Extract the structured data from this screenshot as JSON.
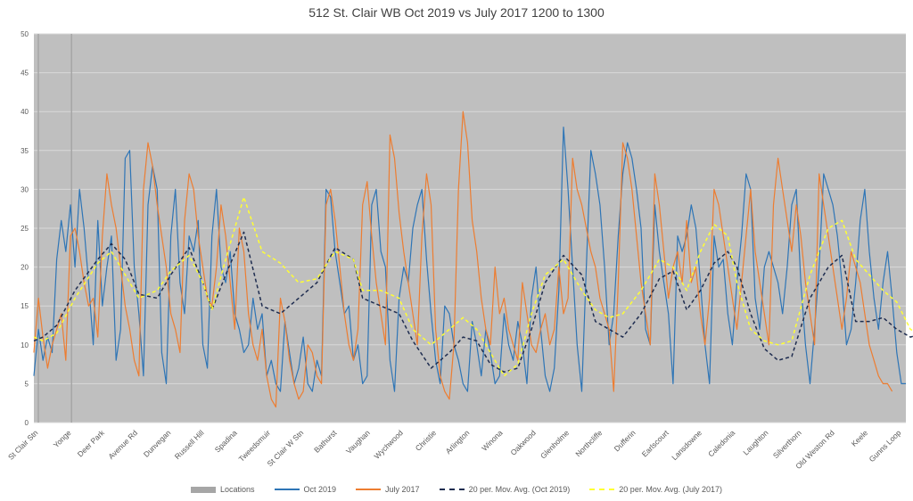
{
  "chart_data": {
    "type": "line",
    "title": "512 St. Clair WB Oct 2019 vs July 2017 1200 to 1300",
    "xlabel": "",
    "ylabel": "",
    "ylim": [
      0,
      50
    ],
    "yticks": [
      0,
      5,
      10,
      15,
      20,
      25,
      30,
      35,
      40,
      45,
      50
    ],
    "grid": true,
    "legend_position": "bottom",
    "locations": [
      "St Clair Stn",
      "Yonge",
      "Deer Park",
      "Avenue Rd",
      "Dunvegan",
      "Russell Hill",
      "Spadina",
      "Tweedsmuir",
      "St Clair W Stn",
      "Bathurst",
      "Vaughan",
      "Wychwood",
      "Christie",
      "Arlington",
      "Winona",
      "Oakwood",
      "Glenholme",
      "Northcliffe",
      "Dufferin",
      "Earlscourt",
      "Lansdowne",
      "Caledonia",
      "Laughton",
      "Silverthorn",
      "Old Weston Rd",
      "Keele",
      "Gunns Loop"
    ],
    "location_markers": [
      "St Clair Stn",
      "Yonge"
    ],
    "series": [
      {
        "name": "Locations",
        "color": "#a6a6a6",
        "style": "bar"
      },
      {
        "name": "Oct 2019",
        "color": "#2e75b6",
        "style": "solid",
        "values": [
          6,
          12,
          8,
          11,
          9,
          21,
          26,
          22,
          28,
          20,
          30,
          25,
          18,
          10,
          26,
          15,
          20,
          24,
          8,
          12,
          34,
          35,
          20,
          14,
          6,
          28,
          33,
          30,
          9,
          5,
          24,
          30,
          18,
          14,
          24,
          22,
          26,
          10,
          7,
          24,
          30,
          20,
          18,
          22,
          14,
          12,
          9,
          10,
          16,
          12,
          14,
          6,
          8,
          5,
          4,
          13,
          9,
          5,
          7,
          11,
          5,
          4,
          8,
          6,
          30,
          29,
          22,
          18,
          14,
          15,
          8,
          10,
          5,
          6,
          28,
          30,
          22,
          20,
          8,
          4,
          16,
          20,
          18,
          25,
          28,
          30,
          21,
          14,
          8,
          5,
          15,
          14,
          10,
          8,
          5,
          4,
          13,
          10,
          6,
          12,
          9,
          5,
          6,
          14,
          10,
          8,
          13,
          10,
          5,
          16,
          20,
          12,
          6,
          4,
          7,
          17,
          38,
          30,
          20,
          10,
          4,
          20,
          35,
          32,
          28,
          20,
          10,
          14,
          24,
          32,
          36,
          34,
          30,
          25,
          12,
          10,
          28,
          22,
          18,
          14,
          5,
          24,
          22,
          24,
          28,
          25,
          18,
          10,
          5,
          24,
          20,
          21,
          14,
          10,
          18,
          24,
          32,
          30,
          16,
          12,
          20,
          22,
          20,
          18,
          14,
          20,
          28,
          30,
          18,
          10,
          5,
          12,
          20,
          32,
          30,
          28,
          24,
          18,
          10,
          12,
          18,
          26,
          30,
          22,
          16,
          12,
          18,
          22,
          16,
          9,
          5,
          5
        ]
      },
      {
        "name": "July 2017",
        "color": "#ed7d31",
        "style": "solid",
        "values": [
          9,
          16,
          11,
          7,
          10,
          12,
          14,
          8,
          24,
          25,
          22,
          18,
          15,
          16,
          11,
          24,
          32,
          28,
          25,
          20,
          15,
          12,
          8,
          6,
          30,
          36,
          33,
          28,
          24,
          20,
          14,
          12,
          9,
          26,
          32,
          30,
          24,
          20,
          16,
          15,
          20,
          28,
          24,
          18,
          12,
          25,
          22,
          14,
          10,
          8,
          12,
          6,
          3,
          2,
          16,
          13,
          8,
          5,
          3,
          4,
          10,
          9,
          6,
          5,
          28,
          30,
          26,
          20,
          14,
          10,
          8,
          12,
          28,
          31,
          24,
          18,
          14,
          10,
          37,
          34,
          27,
          22,
          18,
          14,
          10,
          24,
          32,
          28,
          12,
          6,
          4,
          3,
          10,
          30,
          40,
          36,
          26,
          22,
          16,
          12,
          10,
          20,
          14,
          16,
          12,
          10,
          8,
          18,
          14,
          10,
          9,
          12,
          14,
          10,
          12,
          20,
          14,
          16,
          34,
          30,
          28,
          25,
          22,
          20,
          16,
          14,
          12,
          4,
          18,
          36,
          34,
          30,
          24,
          18,
          14,
          10,
          32,
          28,
          22,
          16,
          20,
          22,
          18,
          26,
          18,
          20,
          14,
          10,
          16,
          30,
          28,
          24,
          20,
          16,
          12,
          18,
          24,
          30,
          22,
          18,
          14,
          10,
          28,
          34,
          30,
          26,
          22,
          28,
          24,
          18,
          14,
          10,
          32,
          28,
          24,
          20,
          16,
          12,
          16,
          22,
          20,
          18,
          14,
          10,
          8,
          6,
          5,
          5,
          4
        ]
      },
      {
        "name": "20 per. Mov. Avg. (Oct 2019)",
        "color": "#1f2d50",
        "style": "dashed",
        "points": [
          [
            0,
            10.5
          ],
          [
            2,
            11
          ],
          [
            5,
            12.5
          ],
          [
            9,
            17
          ],
          [
            14,
            21
          ],
          [
            17,
            23
          ],
          [
            20,
            21
          ],
          [
            23,
            16.5
          ],
          [
            27,
            16
          ],
          [
            30,
            19
          ],
          [
            34,
            22.5
          ],
          [
            37,
            18
          ],
          [
            39,
            14.5
          ],
          [
            42,
            19
          ],
          [
            46,
            24.5
          ],
          [
            50,
            15
          ],
          [
            54,
            14
          ],
          [
            58,
            16
          ],
          [
            62,
            18
          ],
          [
            66,
            22.5
          ],
          [
            70,
            21
          ],
          [
            72,
            16
          ],
          [
            76,
            15
          ],
          [
            80,
            14
          ],
          [
            83,
            10.5
          ],
          [
            87,
            7
          ],
          [
            91,
            9
          ],
          [
            94,
            11
          ],
          [
            97,
            10.5
          ],
          [
            100,
            7.5
          ],
          [
            103,
            6.5
          ],
          [
            106,
            7
          ],
          [
            109,
            12
          ],
          [
            112,
            18
          ],
          [
            116,
            21.5
          ],
          [
            120,
            19
          ],
          [
            123,
            13
          ],
          [
            126,
            12
          ],
          [
            129,
            11
          ],
          [
            133,
            14
          ],
          [
            137,
            18.5
          ],
          [
            140,
            19.5
          ],
          [
            143,
            14.5
          ],
          [
            146,
            17
          ],
          [
            149,
            20.5
          ],
          [
            152,
            22
          ],
          [
            154,
            20
          ],
          [
            157,
            14
          ],
          [
            160,
            9.5
          ],
          [
            163,
            8
          ],
          [
            166,
            8.5
          ],
          [
            170,
            16
          ],
          [
            174,
            20
          ],
          [
            177,
            21.5
          ],
          [
            180,
            13
          ],
          [
            183,
            13
          ],
          [
            186,
            13.5
          ],
          [
            189,
            12
          ],
          [
            192,
            11
          ],
          [
            195,
            11.5
          ],
          [
            199,
            17
          ],
          [
            202,
            20
          ],
          [
            205,
            15
          ],
          [
            208,
            13
          ],
          [
            211,
            17
          ],
          [
            215,
            20
          ],
          [
            219,
            21
          ],
          [
            223,
            11.5
          ],
          [
            227,
            22
          ],
          [
            231,
            28
          ],
          [
            234,
            22
          ],
          [
            237,
            13.5
          ],
          [
            240,
            14
          ],
          [
            243,
            15
          ],
          [
            246,
            15.5
          ],
          [
            249,
            14
          ],
          [
            252,
            13.5
          ],
          [
            255,
            14.5
          ],
          [
            259,
            16
          ],
          [
            263,
            18
          ],
          [
            266,
            17
          ],
          [
            270,
            13.5
          ],
          [
            273,
            13
          ],
          [
            276,
            16
          ],
          [
            279,
            17.5
          ],
          [
            282,
            15
          ],
          [
            285,
            11.5
          ],
          [
            289,
            14
          ],
          [
            293,
            18
          ],
          [
            296,
            20
          ],
          [
            299,
            16
          ],
          [
            302,
            11.5
          ]
        ]
      },
      {
        "name": "20 per. Mov. Avg. (July 2017)",
        "color": "#ffff33",
        "style": "dashed",
        "points": [
          [
            0,
            11
          ],
          [
            2,
            10.5
          ],
          [
            5,
            11.5
          ],
          [
            9,
            16
          ],
          [
            14,
            20.5
          ],
          [
            17,
            22
          ],
          [
            20,
            19
          ],
          [
            23,
            16
          ],
          [
            27,
            17
          ],
          [
            30,
            19.5
          ],
          [
            34,
            21.5
          ],
          [
            37,
            18
          ],
          [
            39,
            14.5
          ],
          [
            42,
            21
          ],
          [
            46,
            29
          ],
          [
            50,
            22
          ],
          [
            54,
            20.5
          ],
          [
            58,
            18
          ],
          [
            62,
            18.5
          ],
          [
            66,
            22
          ],
          [
            70,
            21
          ],
          [
            72,
            17
          ],
          [
            76,
            17
          ],
          [
            80,
            16
          ],
          [
            83,
            12
          ],
          [
            87,
            10
          ],
          [
            91,
            12
          ],
          [
            94,
            13.5
          ],
          [
            97,
            12
          ],
          [
            100,
            9
          ],
          [
            103,
            6
          ],
          [
            106,
            7.5
          ],
          [
            109,
            14
          ],
          [
            112,
            19
          ],
          [
            116,
            21
          ],
          [
            120,
            17
          ],
          [
            123,
            14.5
          ],
          [
            126,
            13.5
          ],
          [
            129,
            14
          ],
          [
            133,
            17
          ],
          [
            137,
            21
          ],
          [
            140,
            20
          ],
          [
            143,
            17
          ],
          [
            146,
            22
          ],
          [
            149,
            25.5
          ],
          [
            152,
            24
          ],
          [
            154,
            18
          ],
          [
            157,
            12
          ],
          [
            160,
            10.5
          ],
          [
            163,
            10
          ],
          [
            166,
            10.5
          ],
          [
            170,
            19
          ],
          [
            174,
            25
          ],
          [
            177,
            26
          ],
          [
            180,
            21
          ],
          [
            183,
            19
          ],
          [
            186,
            17
          ],
          [
            189,
            15.5
          ],
          [
            192,
            12
          ],
          [
            195,
            11
          ],
          [
            199,
            15
          ],
          [
            202,
            18
          ],
          [
            205,
            15
          ],
          [
            208,
            14
          ],
          [
            211,
            17
          ],
          [
            215,
            20
          ],
          [
            219,
            24.5
          ],
          [
            223,
            21
          ],
          [
            227,
            24
          ],
          [
            231,
            27
          ],
          [
            234,
            23
          ],
          [
            237,
            17
          ],
          [
            240,
            16
          ],
          [
            243,
            18
          ],
          [
            246,
            20.5
          ],
          [
            249,
            17
          ],
          [
            252,
            15.5
          ],
          [
            255,
            15
          ],
          [
            259,
            17
          ],
          [
            263,
            19
          ],
          [
            266,
            18
          ],
          [
            270,
            13.5
          ],
          [
            273,
            16
          ],
          [
            276,
            23
          ],
          [
            279,
            26
          ],
          [
            282,
            21
          ],
          [
            285,
            12.5
          ],
          [
            289,
            14
          ],
          [
            293,
            18
          ],
          [
            296,
            21
          ],
          [
            299,
            17
          ],
          [
            302,
            12
          ]
        ]
      }
    ]
  }
}
